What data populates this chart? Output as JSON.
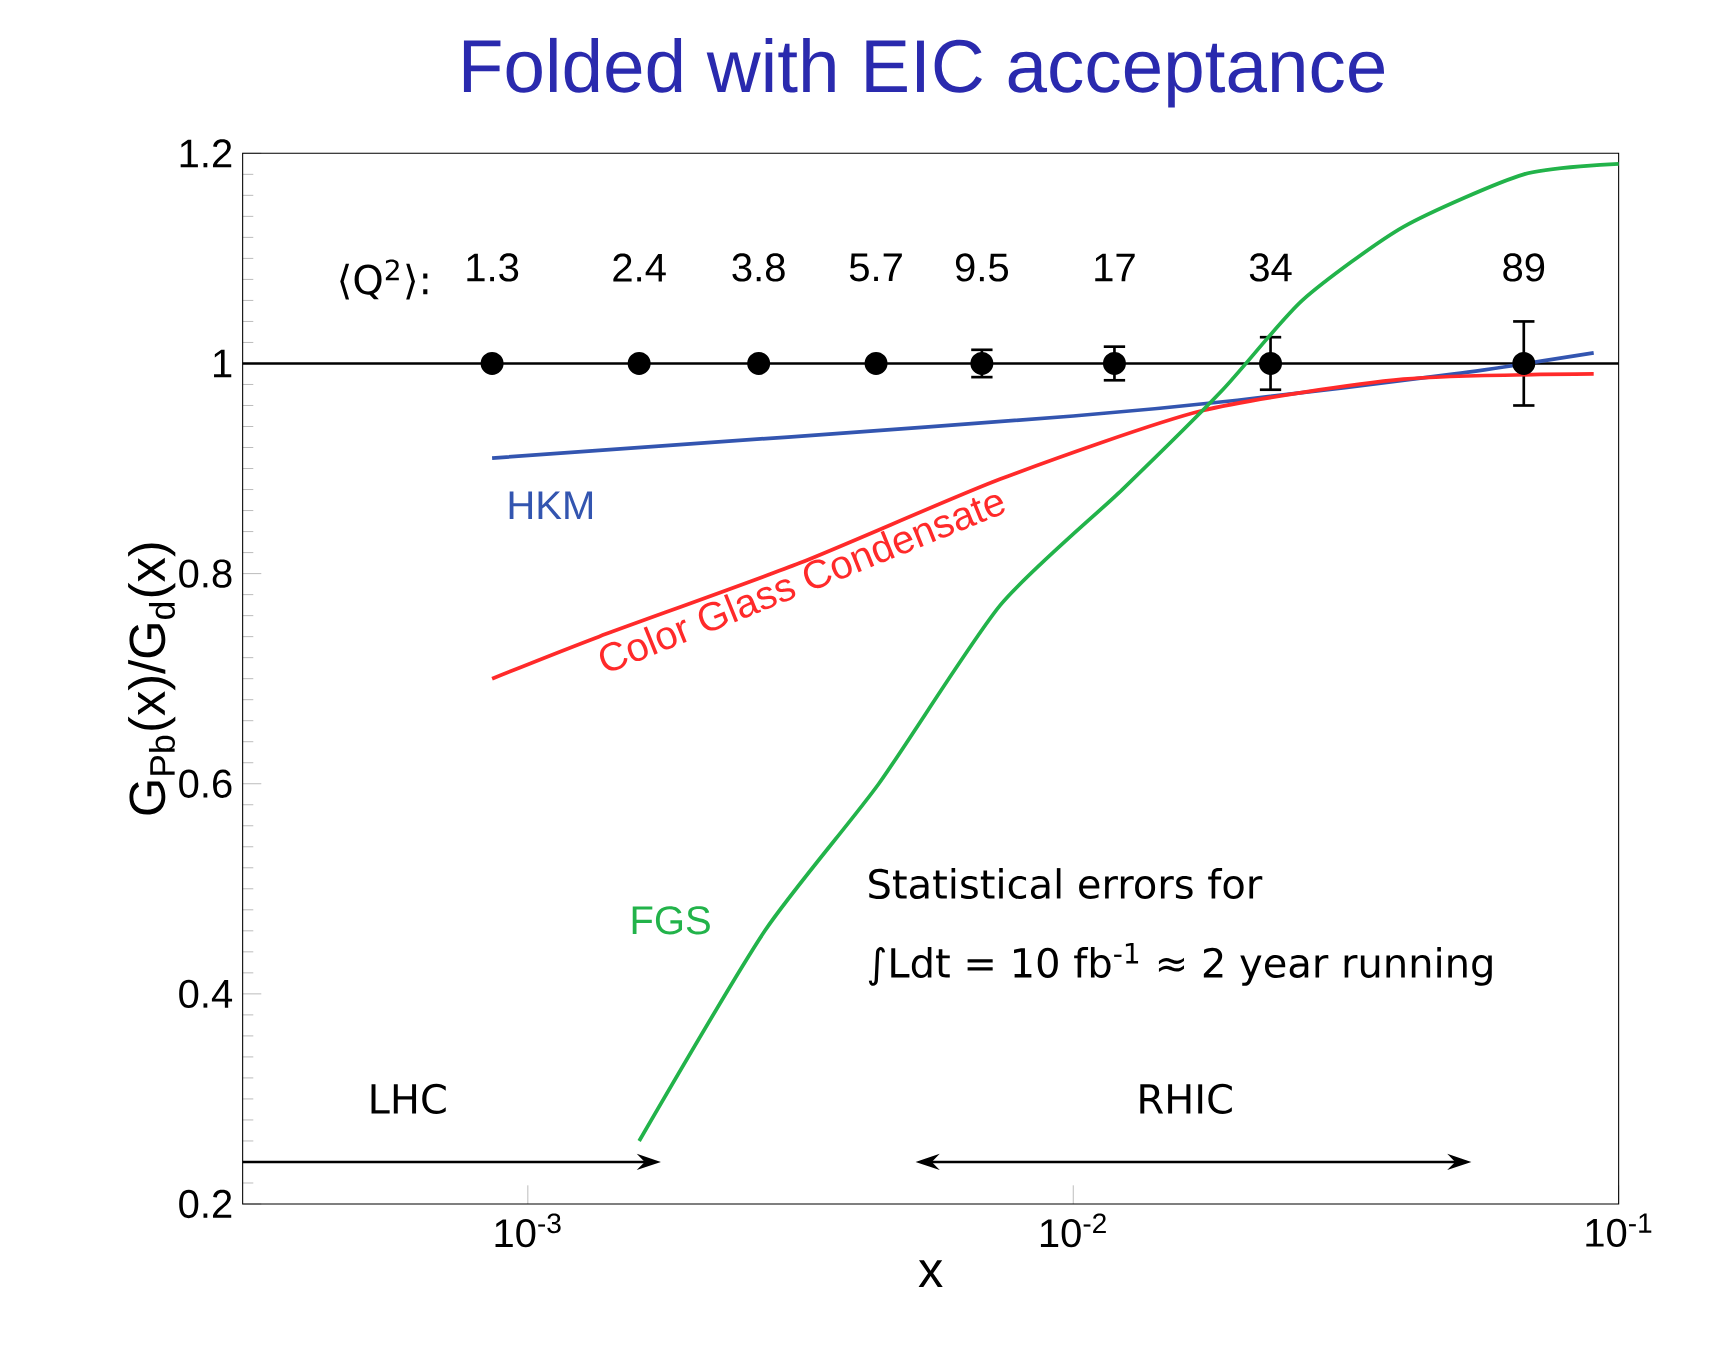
{
  "chart_data": {
    "type": "line",
    "title": "Folded with EIC acceptance",
    "xlabel": "x",
    "ylabel": "G$_{Pb}$(x)/G$_{d}$(x)",
    "log": "x",
    "xlim": [
      0.0003,
      0.1
    ],
    "ylim": [
      0.2,
      1.2
    ],
    "xticks": [
      {
        "value": 0.001,
        "label": "10$^{-3}$"
      },
      {
        "value": 0.01,
        "label": "10$^{-2}$"
      },
      {
        "value": 0.1,
        "label": "10$^{-1}$"
      }
    ],
    "yticks": [
      0.2,
      0.4,
      0.6,
      0.8,
      1,
      1.2
    ],
    "series": [
      {
        "type": "scatter",
        "color": "#000000",
        "marker": "circle",
        "x": [
          0.00086,
          0.0016,
          0.00265,
          0.00435,
          0.0068,
          0.0119,
          0.023,
          0.067
        ],
        "values": [
          1,
          1,
          1,
          1,
          1,
          1,
          1,
          1
        ],
        "errors": [
          null,
          null,
          null,
          null,
          0.013,
          0.016,
          0.025,
          0.04
        ]
      },
      {
        "name": "HKM",
        "color": "#3355b0",
        "x": [
          0.00086,
          0.003,
          0.01,
          0.02,
          0.05,
          0.09
        ],
        "values": [
          0.91,
          0.93,
          0.95,
          0.965,
          0.99,
          1.01
        ]
      },
      {
        "name": "Color Glass Condensate",
        "color": "#ff2a2a",
        "x": [
          0.00086,
          0.00135,
          0.00315,
          0.00735,
          0.0172,
          0.0403,
          0.09
        ],
        "values": [
          0.7,
          0.74,
          0.81,
          0.89,
          0.955,
          0.985,
          0.99
        ]
      },
      {
        "name": "FGS",
        "color": "#22b34a",
        "x": [
          0.0016,
          0.00272,
          0.0044,
          0.00735,
          0.0123,
          0.0188,
          0.0263,
          0.0403,
          0.067,
          0.1
        ],
        "values": [
          0.26,
          0.46,
          0.6,
          0.77,
          0.88,
          0.975,
          1.06,
          1.13,
          1.18,
          1.19
        ]
      }
    ],
    "ref_lines": [
      {
        "axis": "y",
        "value": 1
      }
    ],
    "annotations": [
      "⟨Q$^{2}$⟩:",
      "Statistical errors for",
      "∫Ldt = 10 fb$^{-1}$ ≈ 2 year running",
      "LHC",
      "RHIC",
      "1.3",
      "2.4",
      "3.8",
      "5.7",
      "9.5",
      "17",
      "34",
      "89"
    ]
  }
}
